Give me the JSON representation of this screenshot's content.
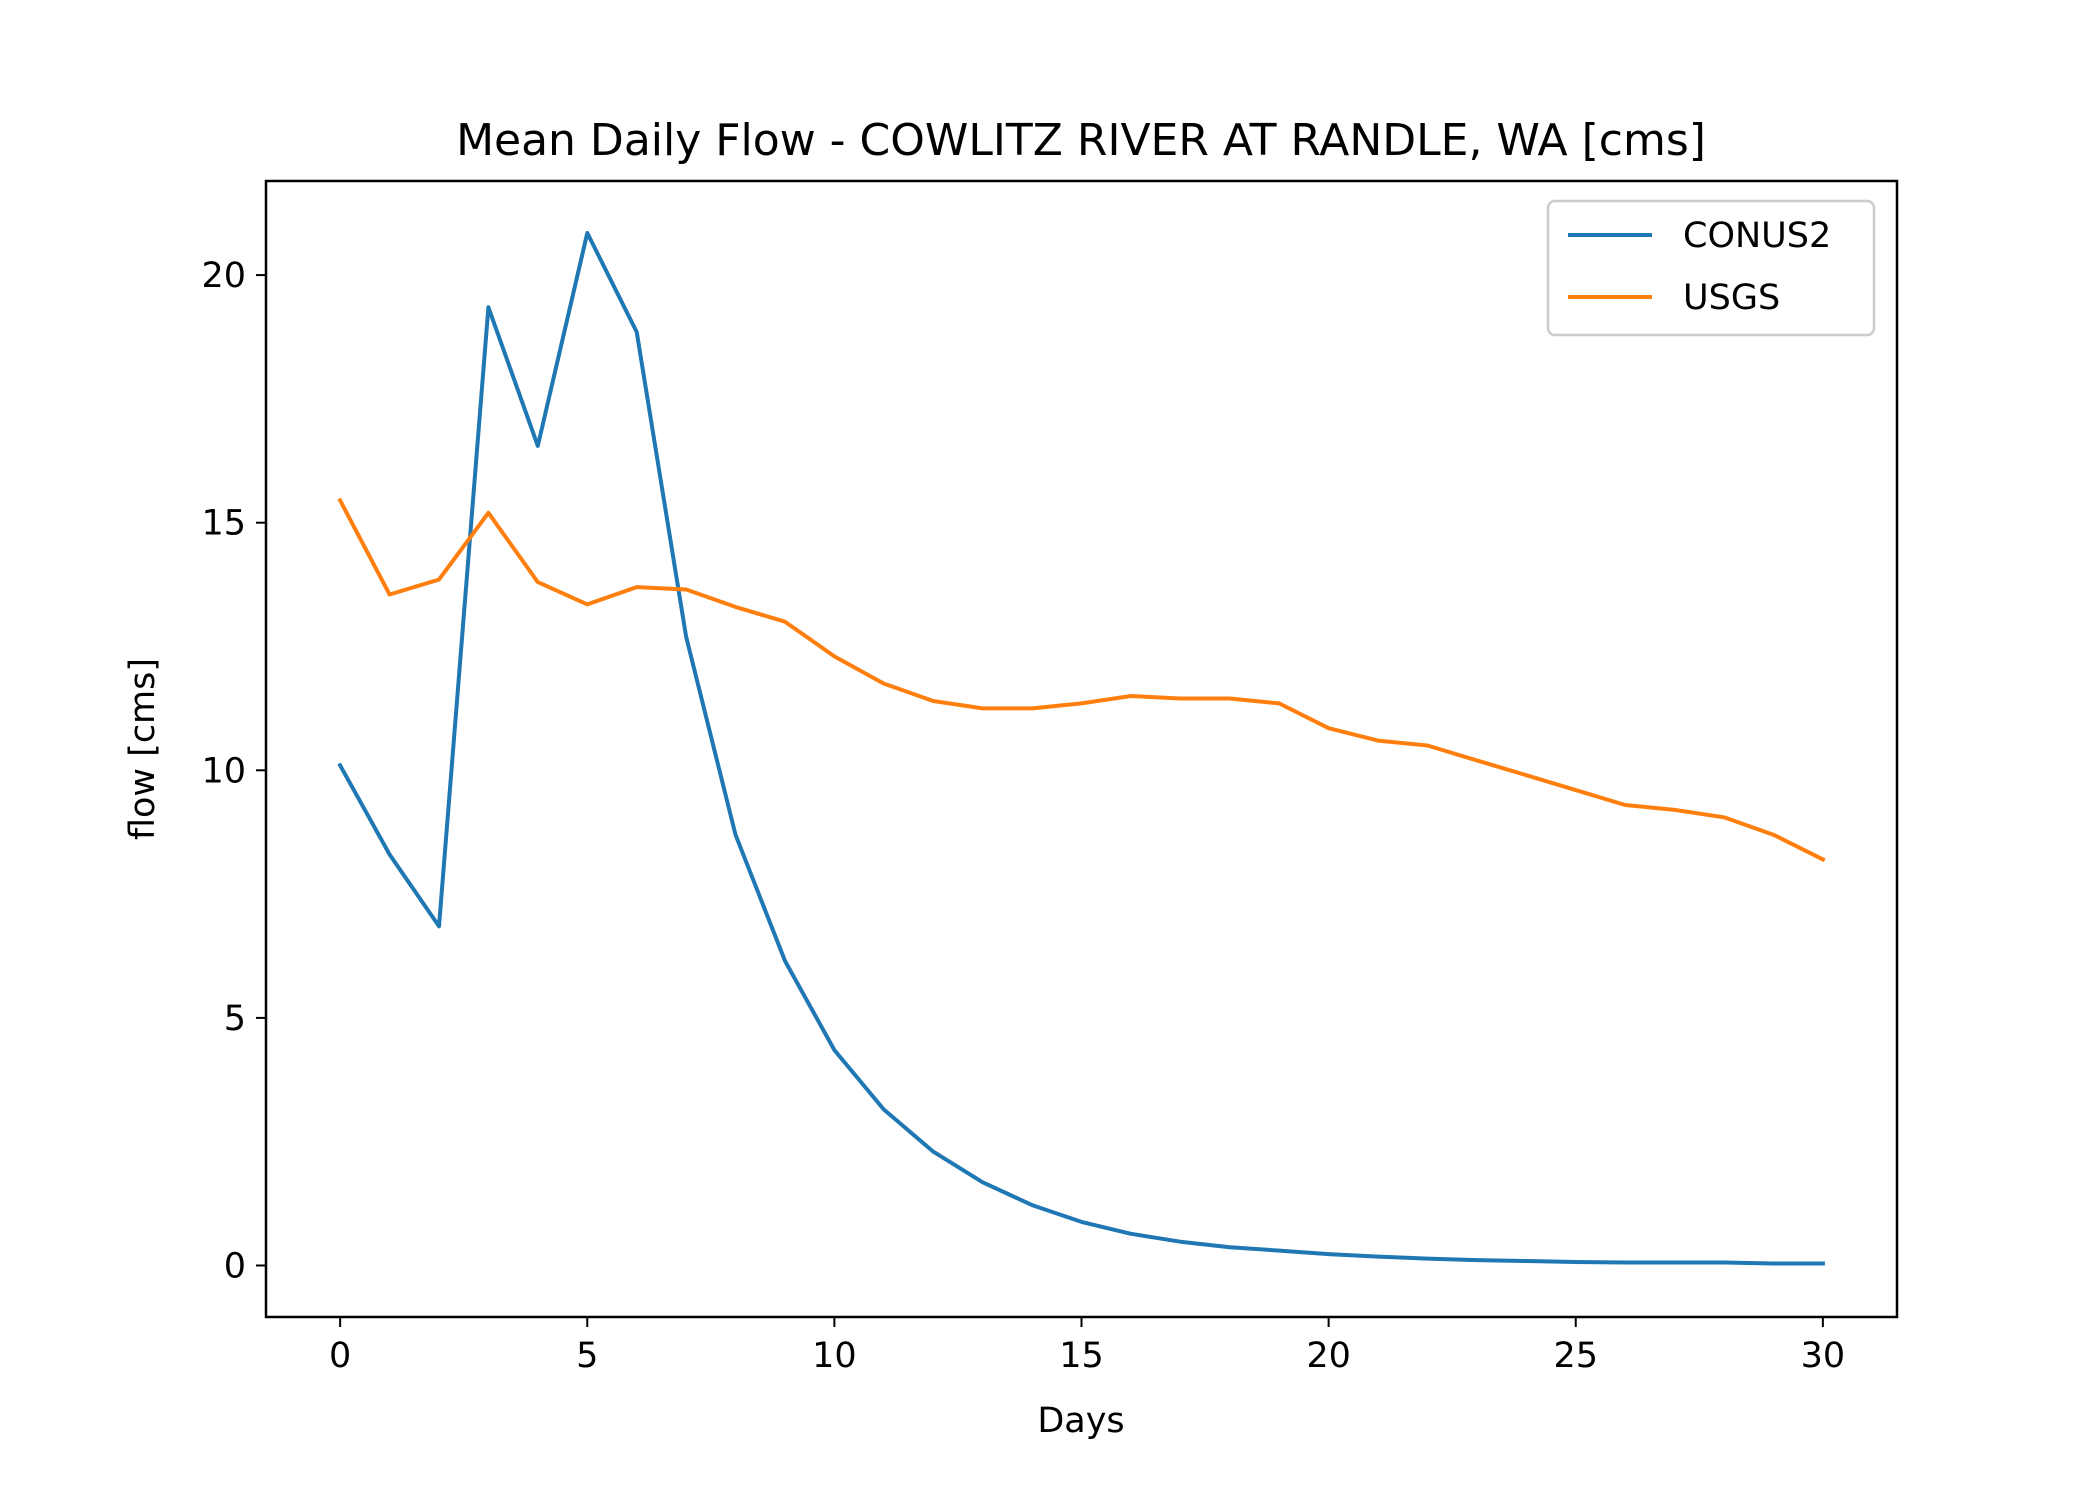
{
  "chart_data": {
    "type": "line",
    "title": "Mean Daily Flow - COWLITZ RIVER AT RANDLE, WA [cms]",
    "xlabel": "Days",
    "ylabel": "flow [cms]",
    "xlim": [
      -1.5,
      31.5
    ],
    "ylim": [
      -1.04,
      21.9
    ],
    "xticks": [
      0,
      5,
      10,
      15,
      20,
      25,
      30
    ],
    "xtick_labels": [
      "0",
      "5",
      "10",
      "15",
      "20",
      "25",
      "30"
    ],
    "yticks": [
      0,
      5,
      10,
      15,
      20
    ],
    "ytick_labels": [
      "0",
      "5",
      "10",
      "15",
      "20"
    ],
    "grid": false,
    "legend_position": "top-right",
    "x": [
      0,
      1,
      2,
      3,
      4,
      5,
      6,
      7,
      8,
      9,
      10,
      11,
      12,
      13,
      14,
      15,
      16,
      17,
      18,
      19,
      20,
      21,
      22,
      23,
      24,
      25,
      26,
      27,
      28,
      29,
      30
    ],
    "series": [
      {
        "name": "CONUS2",
        "color": "#1f77b4",
        "values": [
          10.1,
          8.3,
          6.85,
          19.35,
          16.55,
          20.85,
          18.85,
          12.7,
          8.7,
          6.15,
          4.35,
          3.15,
          2.3,
          1.68,
          1.22,
          0.88,
          0.64,
          0.48,
          0.37,
          0.3,
          0.23,
          0.18,
          0.14,
          0.11,
          0.09,
          0.07,
          0.06,
          0.06,
          0.06,
          0.04,
          0.04
        ]
      },
      {
        "name": "USGS",
        "color": "#ff7f0e",
        "values": [
          15.45,
          13.55,
          13.85,
          15.2,
          13.8,
          13.35,
          13.7,
          13.65,
          13.3,
          13.0,
          12.3,
          11.75,
          11.4,
          11.25,
          11.25,
          11.35,
          11.5,
          11.45,
          11.45,
          11.35,
          10.85,
          10.6,
          10.5,
          10.2,
          9.9,
          9.6,
          9.3,
          9.2,
          9.05,
          8.7,
          8.2
        ]
      }
    ]
  }
}
